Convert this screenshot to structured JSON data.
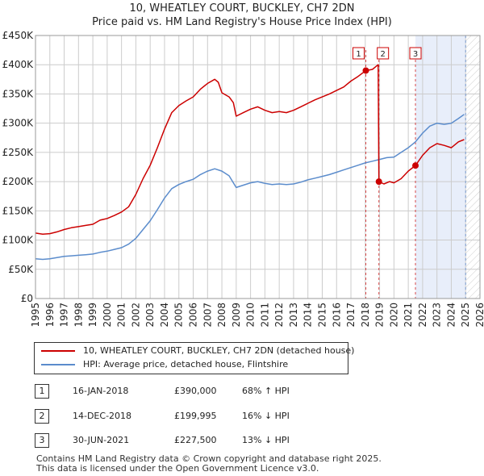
{
  "header": {
    "title_line1": "10, WHEATLEY COURT, BUCKLEY, CH7 2DN",
    "title_line2": "Price paid vs. HM Land Registry's House Price Index (HPI)"
  },
  "colors": {
    "property": "#cc0000",
    "hpi": "#5b8ccc",
    "highlight": "#e8eefa",
    "hatch": "#cccccc",
    "grid": "#cccccc"
  },
  "legend": {
    "property_label": "10, WHEATLEY COURT, BUCKLEY, CH7 2DN (detached house)",
    "hpi_label": "HPI: Average price, detached house, Flintshire"
  },
  "sales": [
    {
      "num": "1",
      "date": "16-JAN-2018",
      "price": "£390,000",
      "hpi": "68% ↑ HPI"
    },
    {
      "num": "2",
      "date": "14-DEC-2018",
      "price": "£199,995",
      "hpi": "16% ↓ HPI"
    },
    {
      "num": "3",
      "date": "30-JUN-2021",
      "price": "£227,500",
      "hpi": "13% ↓ HPI"
    }
  ],
  "footer": {
    "line1": "Contains HM Land Registry data © Crown copyright and database right 2025.",
    "line2": "This data is licensed under the Open Government Licence v3.0."
  },
  "chart_data": {
    "type": "line",
    "title": "10, WHEATLEY COURT, BUCKLEY, CH7 2DN",
    "subtitle": "Price paid vs. HM Land Registry's House Price Index (HPI)",
    "xlabel": "",
    "ylabel": "",
    "xlim": [
      1995,
      2026
    ],
    "ylim": [
      0,
      450000
    ],
    "x_ticks": [
      1995,
      1996,
      1997,
      1998,
      1999,
      2000,
      2001,
      2002,
      2003,
      2004,
      2005,
      2006,
      2007,
      2008,
      2009,
      2010,
      2011,
      2012,
      2013,
      2014,
      2015,
      2016,
      2017,
      2018,
      2019,
      2020,
      2021,
      2022,
      2023,
      2024,
      2025,
      2026
    ],
    "y_ticks": [
      0,
      50000,
      100000,
      150000,
      200000,
      250000,
      300000,
      350000,
      400000,
      450000
    ],
    "y_tick_labels": [
      "£0",
      "£50K",
      "£100K",
      "£150K",
      "£200K",
      "£250K",
      "£300K",
      "£350K",
      "£400K",
      "£450K"
    ],
    "grid": true,
    "highlight_span": [
      2021.5,
      2025.0
    ],
    "future_hatch_from": 2025.0,
    "series": [
      {
        "name": "10, WHEATLEY COURT, BUCKLEY, CH7 2DN (detached house)",
        "color": "#cc0000",
        "points": [
          [
            1995.0,
            112000
          ],
          [
            1995.5,
            110000
          ],
          [
            1996.0,
            111000
          ],
          [
            1996.5,
            114000
          ],
          [
            1997.0,
            118000
          ],
          [
            1997.5,
            121000
          ],
          [
            1998.0,
            123000
          ],
          [
            1998.5,
            125000
          ],
          [
            1999.0,
            127000
          ],
          [
            1999.5,
            134000
          ],
          [
            2000.0,
            137000
          ],
          [
            2000.5,
            142000
          ],
          [
            2001.0,
            148000
          ],
          [
            2001.5,
            157000
          ],
          [
            2002.0,
            178000
          ],
          [
            2002.5,
            205000
          ],
          [
            2003.0,
            228000
          ],
          [
            2003.5,
            258000
          ],
          [
            2004.0,
            290000
          ],
          [
            2004.5,
            318000
          ],
          [
            2005.0,
            330000
          ],
          [
            2005.5,
            338000
          ],
          [
            2006.0,
            345000
          ],
          [
            2006.5,
            358000
          ],
          [
            2007.0,
            368000
          ],
          [
            2007.5,
            375000
          ],
          [
            2007.75,
            370000
          ],
          [
            2008.0,
            352000
          ],
          [
            2008.5,
            345000
          ],
          [
            2008.8,
            335000
          ],
          [
            2009.0,
            312000
          ],
          [
            2009.5,
            318000
          ],
          [
            2010.0,
            324000
          ],
          [
            2010.5,
            328000
          ],
          [
            2011.0,
            322000
          ],
          [
            2011.5,
            318000
          ],
          [
            2012.0,
            320000
          ],
          [
            2012.5,
            318000
          ],
          [
            2013.0,
            322000
          ],
          [
            2013.5,
            328000
          ],
          [
            2014.0,
            334000
          ],
          [
            2014.5,
            340000
          ],
          [
            2015.0,
            345000
          ],
          [
            2015.5,
            350000
          ],
          [
            2016.0,
            356000
          ],
          [
            2016.5,
            362000
          ],
          [
            2017.0,
            372000
          ],
          [
            2017.5,
            380000
          ],
          [
            2018.04,
            390000
          ],
          [
            2018.5,
            392000
          ],
          [
            2018.9,
            400000
          ],
          [
            2018.95,
            199995
          ],
          [
            2019.3,
            196000
          ],
          [
            2019.7,
            200000
          ],
          [
            2020.0,
            198000
          ],
          [
            2020.5,
            205000
          ],
          [
            2021.0,
            218000
          ],
          [
            2021.5,
            227500
          ],
          [
            2022.0,
            245000
          ],
          [
            2022.5,
            258000
          ],
          [
            2023.0,
            265000
          ],
          [
            2023.5,
            262000
          ],
          [
            2024.0,
            258000
          ],
          [
            2024.5,
            268000
          ],
          [
            2024.9,
            272000
          ]
        ]
      },
      {
        "name": "HPI: Average price, detached house, Flintshire",
        "color": "#5b8ccc",
        "points": [
          [
            1995.0,
            68000
          ],
          [
            1995.5,
            67000
          ],
          [
            1996.0,
            68000
          ],
          [
            1996.5,
            70000
          ],
          [
            1997.0,
            72000
          ],
          [
            1997.5,
            73000
          ],
          [
            1998.0,
            74000
          ],
          [
            1998.5,
            75000
          ],
          [
            1999.0,
            76000
          ],
          [
            1999.5,
            79000
          ],
          [
            2000.0,
            81000
          ],
          [
            2000.5,
            84000
          ],
          [
            2001.0,
            87000
          ],
          [
            2001.5,
            93000
          ],
          [
            2002.0,
            103000
          ],
          [
            2002.5,
            118000
          ],
          [
            2003.0,
            133000
          ],
          [
            2003.5,
            152000
          ],
          [
            2004.0,
            172000
          ],
          [
            2004.5,
            188000
          ],
          [
            2005.0,
            195000
          ],
          [
            2005.5,
            200000
          ],
          [
            2006.0,
            204000
          ],
          [
            2006.5,
            212000
          ],
          [
            2007.0,
            218000
          ],
          [
            2007.5,
            222000
          ],
          [
            2008.0,
            218000
          ],
          [
            2008.5,
            210000
          ],
          [
            2009.0,
            190000
          ],
          [
            2009.5,
            194000
          ],
          [
            2010.0,
            198000
          ],
          [
            2010.5,
            200000
          ],
          [
            2011.0,
            197000
          ],
          [
            2011.5,
            195000
          ],
          [
            2012.0,
            196000
          ],
          [
            2012.5,
            195000
          ],
          [
            2013.0,
            196000
          ],
          [
            2013.5,
            199000
          ],
          [
            2014.0,
            203000
          ],
          [
            2014.5,
            206000
          ],
          [
            2015.0,
            209000
          ],
          [
            2015.5,
            212000
          ],
          [
            2016.0,
            216000
          ],
          [
            2016.5,
            220000
          ],
          [
            2017.0,
            224000
          ],
          [
            2017.5,
            228000
          ],
          [
            2018.0,
            232000
          ],
          [
            2018.5,
            235000
          ],
          [
            2019.0,
            238000
          ],
          [
            2019.5,
            241000
          ],
          [
            2020.0,
            242000
          ],
          [
            2020.5,
            250000
          ],
          [
            2021.0,
            258000
          ],
          [
            2021.5,
            268000
          ],
          [
            2022.0,
            283000
          ],
          [
            2022.5,
            295000
          ],
          [
            2023.0,
            300000
          ],
          [
            2023.5,
            298000
          ],
          [
            2024.0,
            300000
          ],
          [
            2024.5,
            308000
          ],
          [
            2024.9,
            315000
          ]
        ]
      }
    ],
    "sale_markers": [
      {
        "label": "1",
        "x": 2018.04,
        "y": 390000
      },
      {
        "label": "2",
        "x": 2018.95,
        "y": 199995
      },
      {
        "label": "3",
        "x": 2021.5,
        "y": 227500
      }
    ]
  }
}
